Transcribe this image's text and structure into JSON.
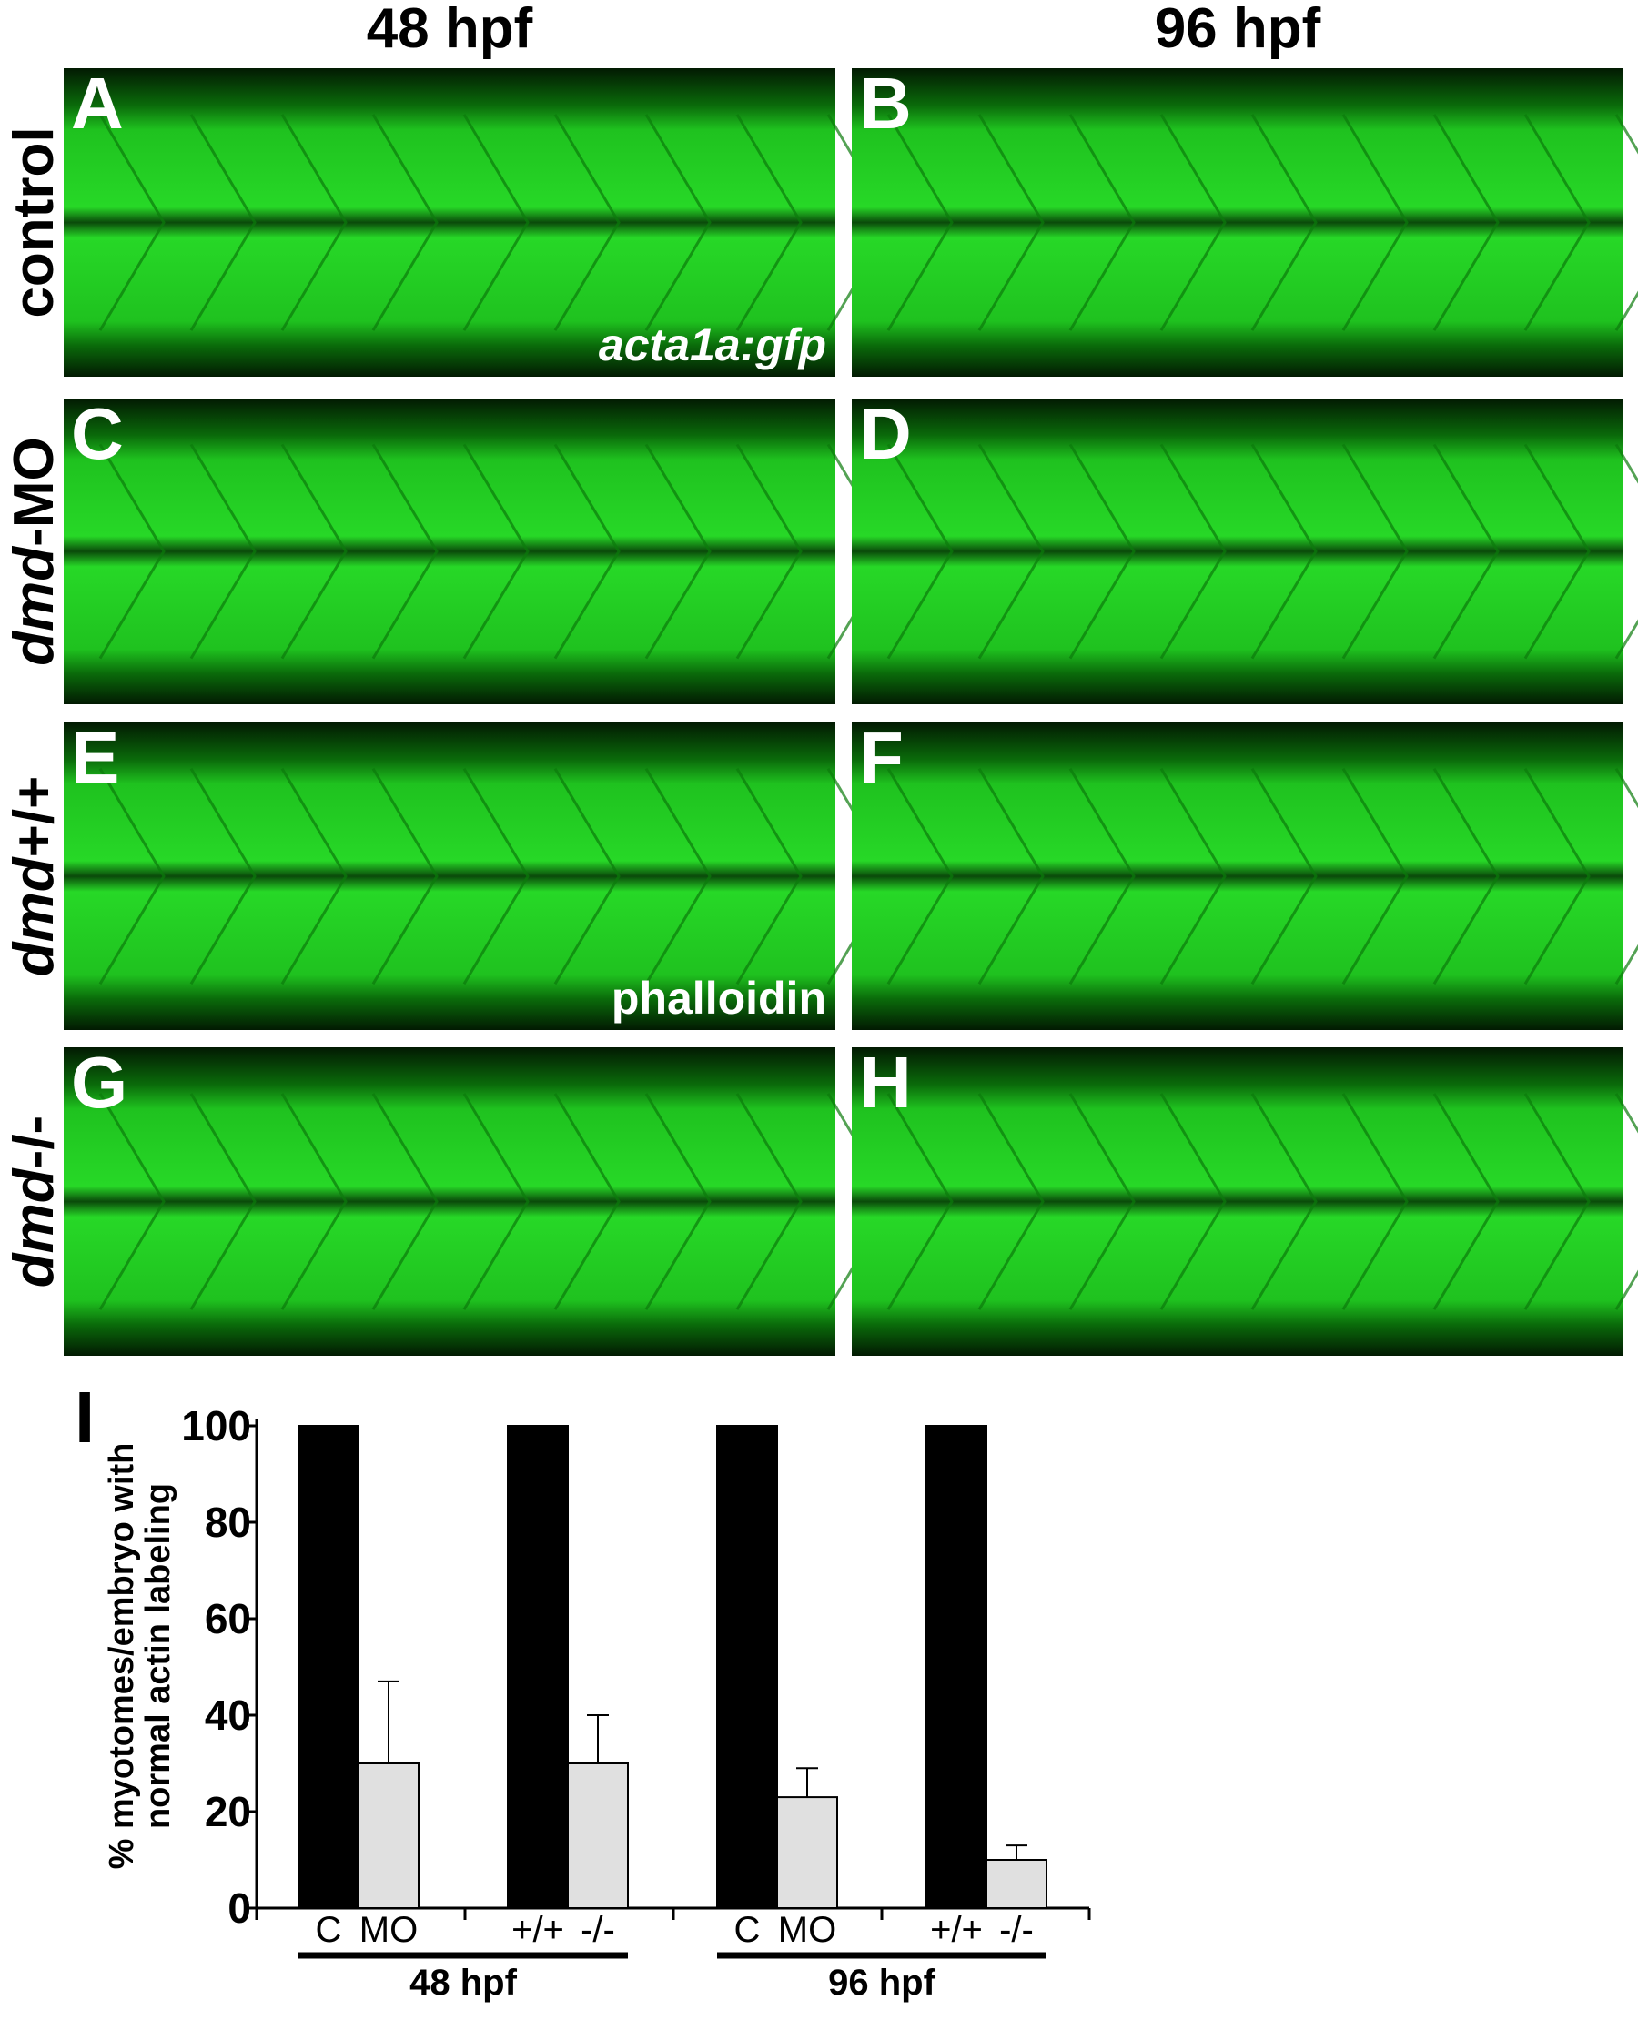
{
  "figure": {
    "column_headers": [
      "48 hpf",
      "96 hpf"
    ],
    "row_labels": [
      [
        {
          "text": "control"
        }
      ],
      [
        {
          "text": "dmd",
          "italic": true
        },
        {
          "text": "-MO"
        }
      ],
      [
        {
          "text": "dmd",
          "italic": true
        },
        {
          "text": "+/+"
        }
      ],
      [
        {
          "text": "dmd",
          "italic": true
        },
        {
          "text": "-/-"
        }
      ]
    ],
    "panels": [
      {
        "letter": "A",
        "annotation": "acta1a:gfp"
      },
      {
        "letter": "B"
      },
      {
        "letter": "C"
      },
      {
        "letter": "D"
      },
      {
        "letter": "E",
        "annotation": "phalloidin"
      },
      {
        "letter": "F"
      },
      {
        "letter": "G"
      },
      {
        "letter": "H"
      }
    ]
  },
  "chart_data": {
    "type": "bar",
    "panel_letter": "I",
    "y_label": [
      "% myotomes/embryo with",
      "normal actin labeling"
    ],
    "categories": [
      "C",
      "MO",
      "+/+",
      "-/-",
      "C",
      "MO",
      "+/+",
      "-/-"
    ],
    "values": [
      100,
      30,
      100,
      30,
      100,
      23,
      100,
      10
    ],
    "errors": [
      null,
      17,
      null,
      10,
      null,
      6,
      null,
      3
    ],
    "colors": [
      "#000000",
      "#e0e0e0",
      "#000000",
      "#e0e0e0",
      "#000000",
      "#e0e0e0",
      "#000000",
      "#e0e0e0"
    ],
    "group_labels": [
      "48 hpf",
      "96 hpf"
    ],
    "ylim": [
      0,
      100
    ],
    "yticks": [
      0,
      20,
      40,
      60,
      80,
      100
    ]
  }
}
